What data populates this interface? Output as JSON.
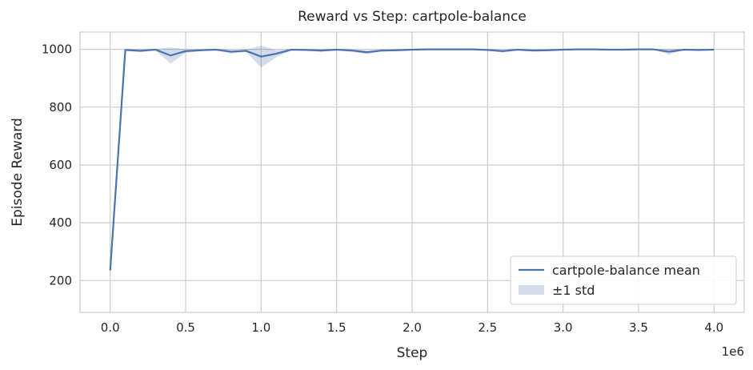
{
  "chart_data": {
    "type": "line",
    "title": "Reward vs Step: cartpole-balance",
    "xlabel": "Step",
    "ylabel": "Episode Reward",
    "x_offset_label": "1e6",
    "xlim": [
      -0.2,
      4.2
    ],
    "ylim": [
      90,
      1060
    ],
    "xticks": [
      0.0,
      0.5,
      1.0,
      1.5,
      2.0,
      2.5,
      3.0,
      3.5,
      4.0
    ],
    "xtick_labels": [
      "0.0",
      "0.5",
      "1.0",
      "1.5",
      "2.0",
      "2.5",
      "3.0",
      "3.5",
      "4.0"
    ],
    "yticks": [
      200,
      400,
      600,
      800,
      1000
    ],
    "ytick_labels": [
      "200",
      "400",
      "600",
      "800",
      "1000"
    ],
    "grid": true,
    "legend_position": "bottom-right",
    "colors": {
      "mean": "#4c72b0",
      "band": "#4c72b0"
    },
    "series": [
      {
        "name": "cartpole-balance mean",
        "x": [
          0.0,
          0.1,
          0.2,
          0.3,
          0.4,
          0.5,
          0.6,
          0.7,
          0.8,
          0.9,
          1.0,
          1.1,
          1.2,
          1.3,
          1.4,
          1.5,
          1.6,
          1.7,
          1.8,
          1.9,
          2.0,
          2.1,
          2.2,
          2.3,
          2.4,
          2.5,
          2.6,
          2.7,
          2.8,
          2.9,
          3.0,
          3.1,
          3.2,
          3.3,
          3.4,
          3.5,
          3.6,
          3.7,
          3.8,
          3.9,
          4.0
        ],
        "mean": [
          235,
          998,
          995,
          999,
          979,
          994,
          997,
          999,
          992,
          995,
          975,
          985,
          999,
          998,
          996,
          999,
          996,
          990,
          996,
          997,
          999,
          1000,
          1000,
          1000,
          1000,
          998,
          994,
          999,
          996,
          997,
          999,
          1000,
          1000,
          999,
          999,
          1000,
          1000,
          992,
          999,
          998,
          999
        ],
        "std": [
          5,
          2,
          5,
          2,
          28,
          6,
          3,
          2,
          6,
          4,
          38,
          12,
          2,
          3,
          4,
          2,
          4,
          6,
          3,
          3,
          1,
          0,
          0,
          0,
          0,
          2,
          5,
          2,
          3,
          3,
          1,
          0,
          0,
          1,
          1,
          0,
          0,
          10,
          1,
          2,
          1
        ]
      }
    ],
    "legend": [
      {
        "label": "cartpole-balance mean",
        "kind": "line"
      },
      {
        "label": "±1 std",
        "kind": "band"
      }
    ]
  }
}
